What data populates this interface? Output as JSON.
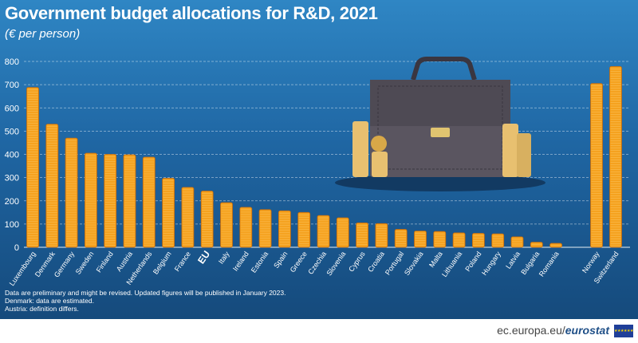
{
  "title": "Government budget allocations for R&D, 2021",
  "subtitle": "(€ per person)",
  "notes": [
    "Data are preliminary and might be revised. Updated figures will be published in January 2023.",
    "Denmark: data are estimated.",
    "Austria: definition differs."
  ],
  "footer": {
    "site": "ec.europa.eu/",
    "brand": "eurostat"
  },
  "colors": {
    "coin": "#f5a21f",
    "coin_edge": "#c56a0a",
    "eu_label": "#ffffff",
    "grid": "#ffffff",
    "briefcase": "#5a5560"
  },
  "chart_data": {
    "type": "bar",
    "title": "Government budget allocations for R&D, 2021",
    "ylabel": "(€ per person)",
    "ylim": [
      0,
      800
    ],
    "yticks": [
      0,
      100,
      200,
      300,
      400,
      500,
      600,
      700,
      800
    ],
    "grid": true,
    "categories": [
      "Luxembourg",
      "Denmark",
      "Germany",
      "Sweden",
      "Finland",
      "Austria",
      "Netherlands",
      "Belgium",
      "France",
      "EU",
      "Italy",
      "Ireland",
      "Estonia",
      "Spain",
      "Greece",
      "Czechia",
      "Slovenia",
      "Cyprus",
      "Croatia",
      "Portugal",
      "Slovakia",
      "Malta",
      "Lithuania",
      "Poland",
      "Hungary",
      "Latvia",
      "Bulgaria",
      "Romania",
      "Norway",
      "Switzerland"
    ],
    "values": [
      688,
      530,
      470,
      405,
      400,
      398,
      388,
      297,
      258,
      242,
      192,
      172,
      162,
      157,
      150,
      137,
      127,
      105,
      102,
      77,
      70,
      68,
      62,
      60,
      58,
      45,
      22,
      17,
      705,
      778
    ]
  }
}
